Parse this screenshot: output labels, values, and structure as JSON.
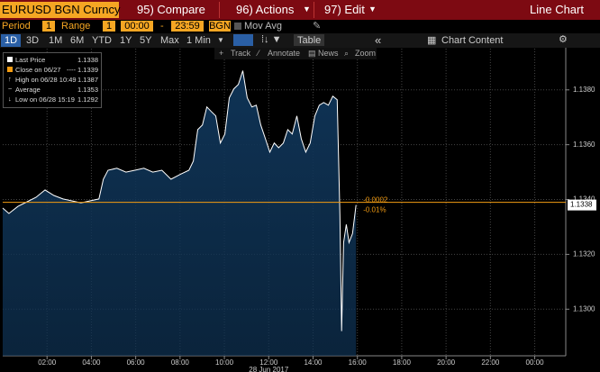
{
  "header": {
    "security": "EURUSD BGN Curncy",
    "menu": [
      "95) Compare",
      "96) Actions",
      "97) Edit"
    ],
    "view": "Line Chart"
  },
  "controls": {
    "period_label": "Period",
    "period": "1",
    "range_label": "Range",
    "range": "1",
    "start": "00:00",
    "dash": "-",
    "end": "23:59",
    "source": "BGN",
    "mov_avg": "Mov Avg"
  },
  "toolbar": {
    "ranges": [
      "1D",
      "3D",
      "1M",
      "6M",
      "YTD",
      "1Y",
      "5Y",
      "Max"
    ],
    "interval": "1 Min",
    "table": "Table",
    "chart_content": "Chart Content"
  },
  "tools": [
    "Track",
    "Annotate",
    "News",
    "Zoom"
  ],
  "chart_data": {
    "type": "line",
    "x_label": "28 Jun 2017",
    "x": [
      0,
      0.28,
      0.69,
      1.1,
      1.5,
      1.91,
      2.31,
      2.72,
      3.12,
      3.53,
      3.94,
      4.34,
      4.54,
      4.75,
      5.15,
      5.56,
      5.96,
      6.37,
      6.77,
      7.18,
      7.59,
      7.99,
      8.4,
      8.6,
      8.8,
      9.01,
      9.21,
      9.41,
      9.61,
      9.82,
      10.02,
      10.22,
      10.43,
      10.63,
      10.83,
      11.03,
      11.24,
      11.44,
      11.64,
      11.85,
      12.05,
      12.25,
      12.45,
      12.66,
      12.86,
      13.06,
      13.27,
      13.47,
      13.67,
      13.87,
      14.08,
      14.28,
      14.48,
      14.69,
      14.89,
      15.09,
      15.21,
      15.29,
      15.38,
      15.5,
      15.62,
      15.78,
      15.94
    ],
    "series": [
      {
        "name": "Last Price",
        "color": "#ffffff",
        "fill": "#0f3355",
        "values": [
          1.13369,
          1.13349,
          1.13375,
          1.13392,
          1.13408,
          1.13435,
          1.13415,
          1.13402,
          1.13395,
          1.13388,
          1.13395,
          1.13402,
          1.13474,
          1.13507,
          1.13514,
          1.135,
          1.13507,
          1.13514,
          1.135,
          1.13507,
          1.13474,
          1.13491,
          1.13507,
          1.1354,
          1.13655,
          1.13672,
          1.13738,
          1.13721,
          1.13705,
          1.13606,
          1.13639,
          1.13771,
          1.13804,
          1.1382,
          1.1387,
          1.13771,
          1.13738,
          1.13744,
          1.13672,
          1.13622,
          1.13573,
          1.13606,
          1.13589,
          1.13606,
          1.13655,
          1.13639,
          1.13705,
          1.13622,
          1.13573,
          1.13606,
          1.13705,
          1.13744,
          1.13754,
          1.13744,
          1.13777,
          1.13764,
          1.13342,
          1.1292,
          1.13243,
          1.13309,
          1.13243,
          1.13276,
          1.1338
        ]
      }
    ],
    "xlim": [
      0,
      25.4
    ],
    "ylim": [
      1.1283,
      1.1398
    ],
    "xticks": [
      {
        "value": 2,
        "label": "02:00"
      },
      {
        "value": 4,
        "label": "04:00"
      },
      {
        "value": 6,
        "label": "06:00"
      },
      {
        "value": 8,
        "label": "08:00"
      },
      {
        "value": 10,
        "label": "10:00"
      },
      {
        "value": 12,
        "label": "12:00"
      },
      {
        "value": 14,
        "label": "14:00"
      },
      {
        "value": 16,
        "label": "16:00"
      },
      {
        "value": 18,
        "label": "18:00"
      },
      {
        "value": 20,
        "label": "20:00"
      },
      {
        "value": 22,
        "label": "22:00"
      },
      {
        "value": 24,
        "label": "00:00"
      }
    ],
    "yticks": [
      {
        "value": 1.13,
        "label": "1.1300"
      },
      {
        "value": 1.132,
        "label": "1.1320"
      },
      {
        "value": 1.134,
        "label": "1.1340"
      },
      {
        "value": 1.136,
        "label": "1.1360"
      },
      {
        "value": 1.138,
        "label": "1.1380"
      }
    ],
    "grid": true,
    "close_color": "#f39c12",
    "stats": [
      {
        "label": "Last Price",
        "value": 1.1338
      },
      {
        "label": "Close on 06/27",
        "value": 1.1339
      },
      {
        "label": "High on 06/28 10:49",
        "value": 1.1387
      },
      {
        "label": "Average",
        "value": 1.1353
      },
      {
        "label": "Low on 06/28 15:19",
        "value": 1.1292
      }
    ],
    "annotations": [
      "-0.0002",
      "-0.01%"
    ]
  }
}
